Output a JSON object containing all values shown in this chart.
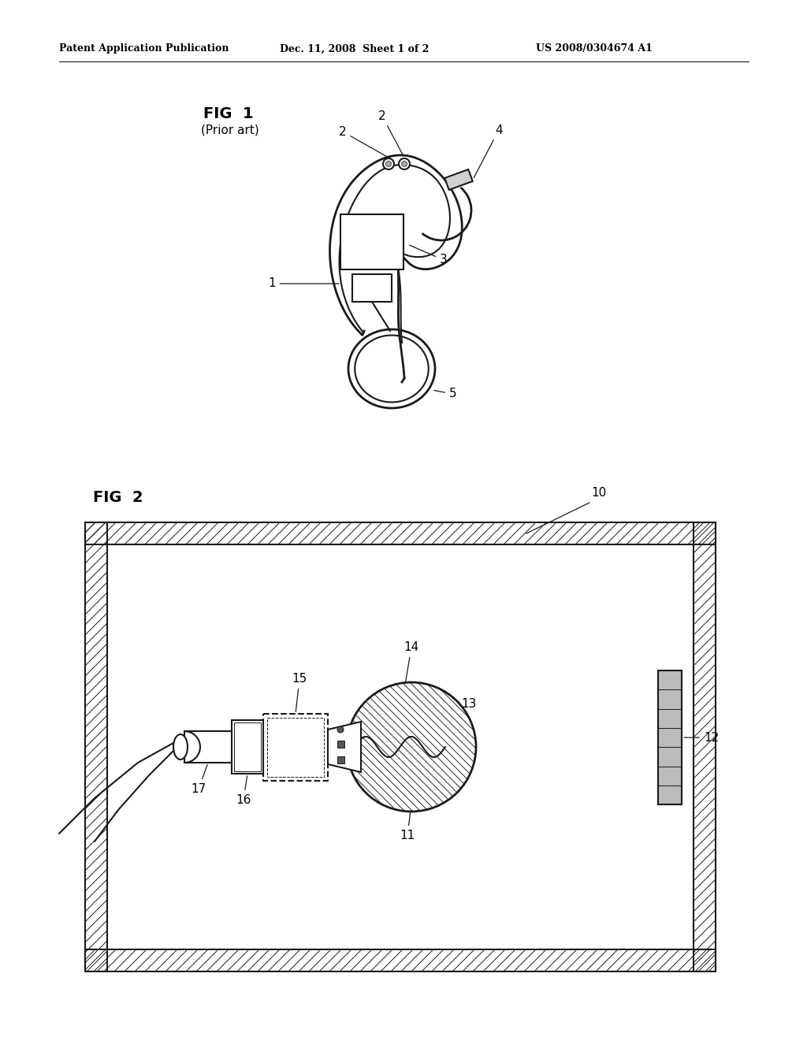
{
  "bg_color": "#ffffff",
  "line_color": "#1a1a1a",
  "header_text": "Patent Application Publication",
  "header_date": "Dec. 11, 2008  Sheet 1 of 2",
  "header_patent": "US 2008/0304674 A1",
  "fig1_title": "FIG  1",
  "fig1_subtitle": "(Prior art)",
  "fig2_title": "FIG  2"
}
